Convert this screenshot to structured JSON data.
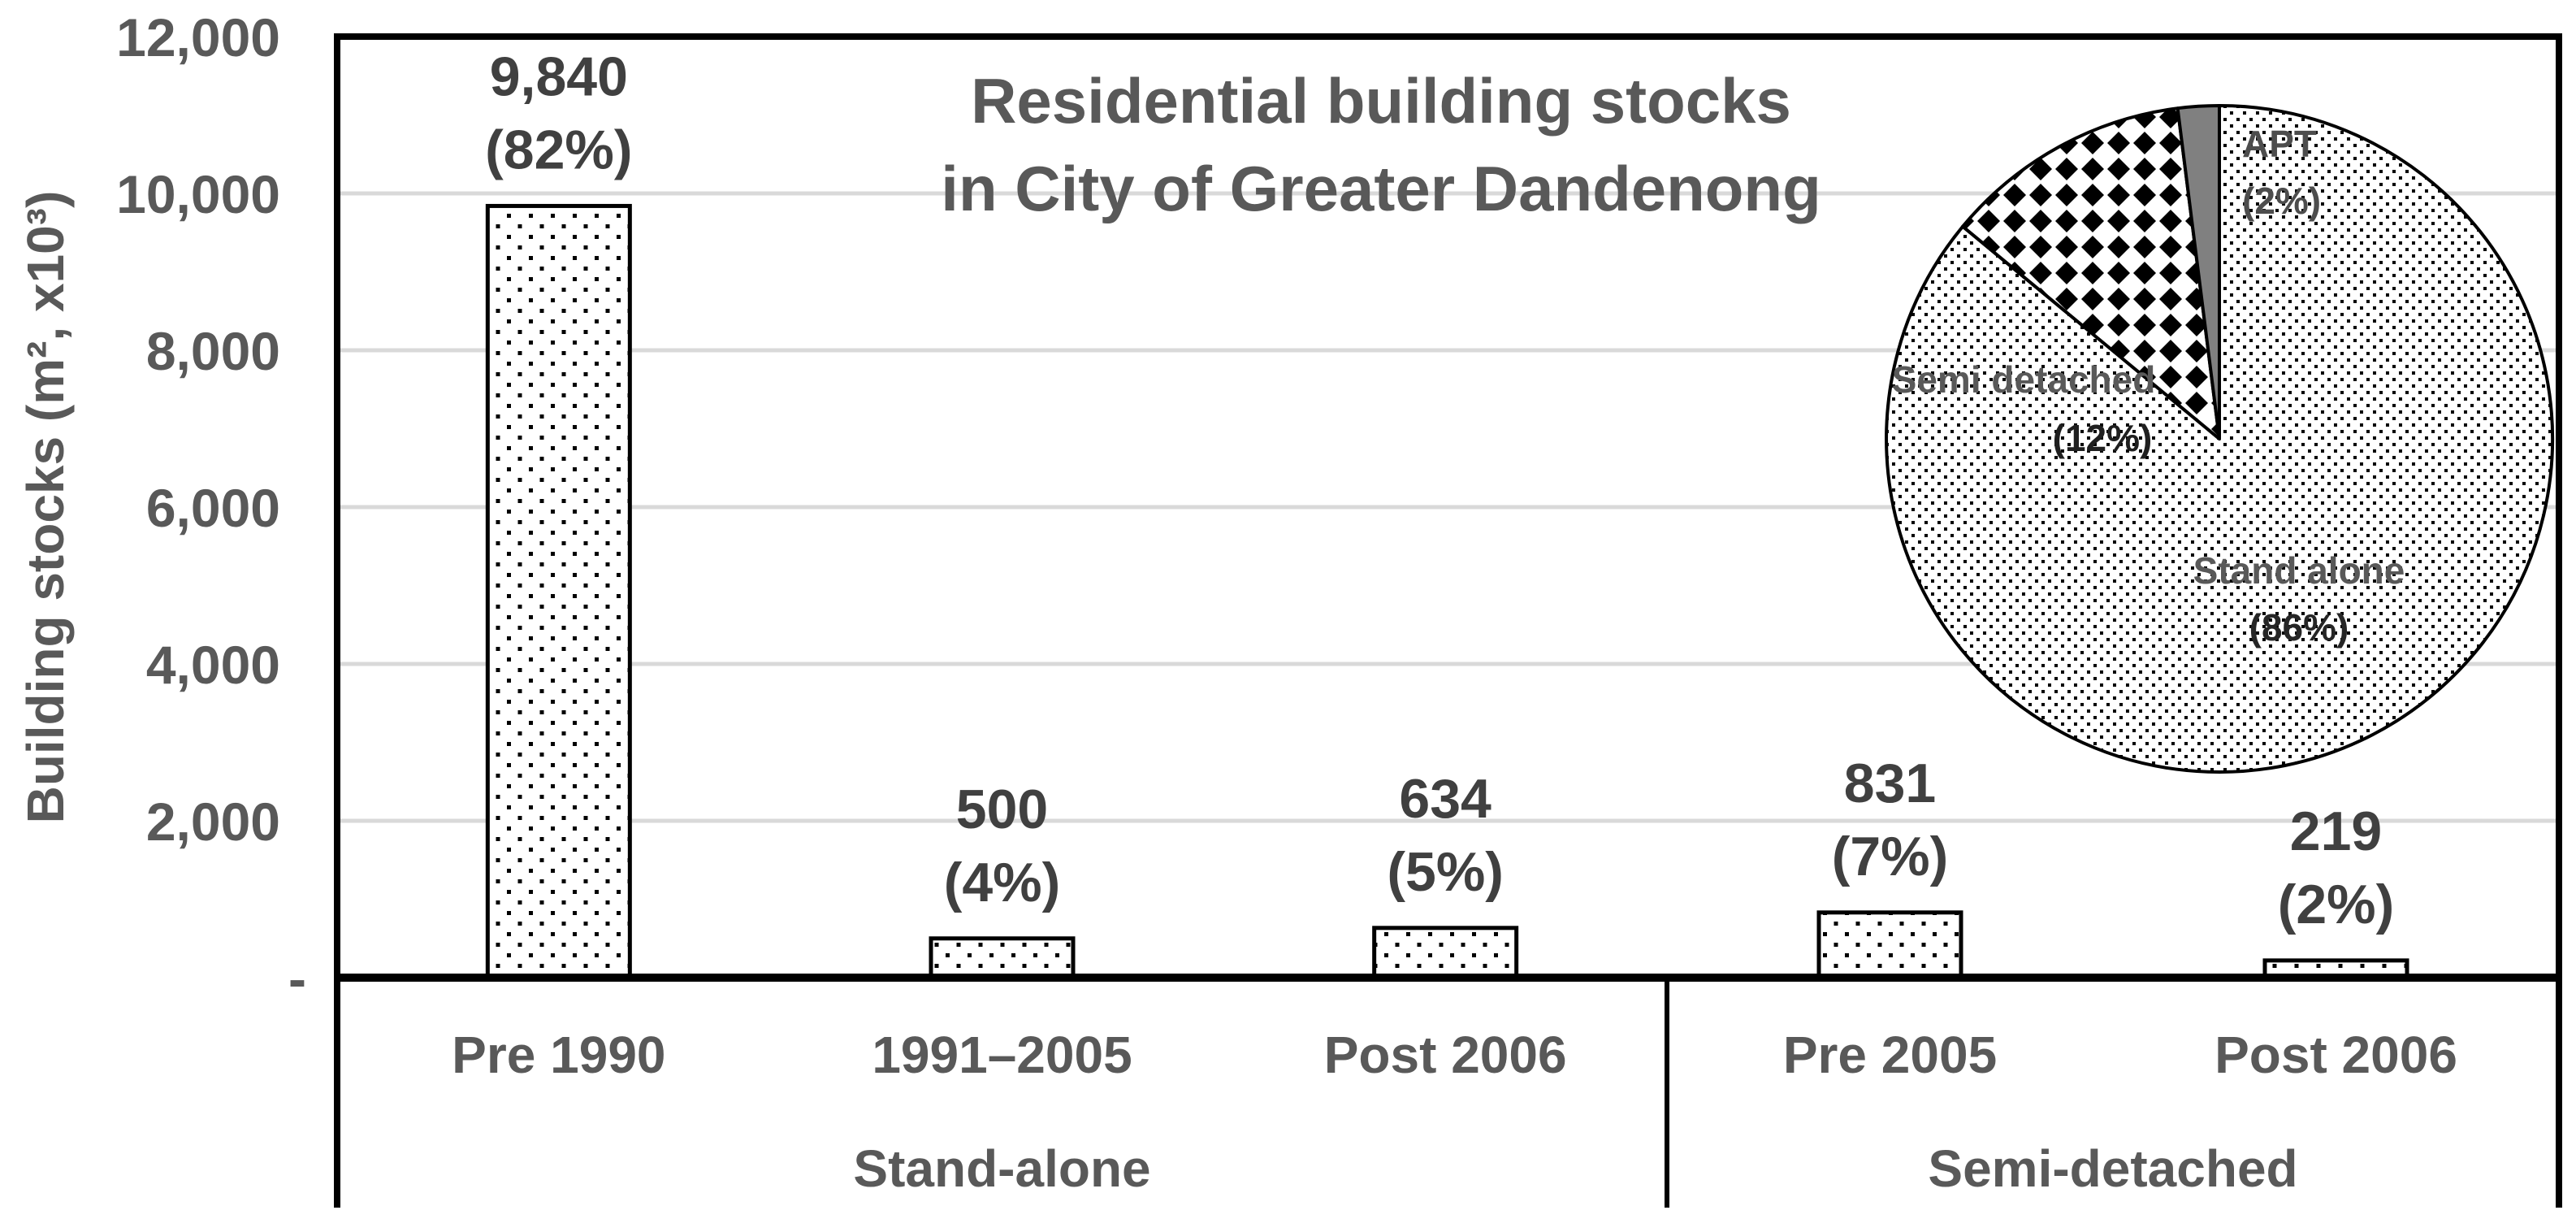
{
  "title": {
    "line1": "Residential building stocks",
    "line2": "in City of Greater Dandenong"
  },
  "y_axis": {
    "title": "Building stocks (m², x10³)",
    "ticks": [
      "12,000",
      "10,000",
      "8,000",
      "6,000",
      "4,000",
      "2,000",
      "-"
    ],
    "tick_values": [
      12000,
      10000,
      8000,
      6000,
      4000,
      2000,
      0
    ]
  },
  "chart_data": {
    "type": "bar",
    "title": "Residential building stocks in City of Greater Dandenong",
    "ylabel": "Building stocks (m², x10³)",
    "ylim": [
      0,
      12000
    ],
    "grid": true,
    "bar_fill": "dots",
    "groups": [
      {
        "label": "Stand-alone",
        "categories": [
          "Pre 1990",
          "1991–2005",
          "Post 2006"
        ],
        "values": [
          9840,
          500,
          634
        ],
        "value_labels": [
          "9,840",
          "500",
          "634"
        ],
        "pct_labels": [
          "(82%)",
          "(4%)",
          "(5%)"
        ]
      },
      {
        "label": "Semi-detached",
        "categories": [
          "Pre 2005",
          "Post 2006"
        ],
        "values": [
          831,
          219
        ],
        "value_labels": [
          "831",
          "219"
        ],
        "pct_labels": [
          "(7%)",
          "(2%)"
        ]
      }
    ],
    "pie": {
      "type": "pie",
      "start_angle_deg": 0,
      "direction": "clockwise",
      "slices": [
        {
          "label": "Stand alone",
          "pct_label": "(86%)",
          "value": 86,
          "fill": "dots",
          "label_color": "#595959",
          "pct_color": "#262626"
        },
        {
          "label": "Semi detached",
          "pct_label": "(12%)",
          "value": 12,
          "fill": "diamonds",
          "label_color": "#595959",
          "pct_color": "#1f1f1f"
        },
        {
          "label": "APT",
          "pct_label": "(2%)",
          "value": 2,
          "fill": "#808080",
          "label_color": "#4d4d4d",
          "pct_color": "#4d4d4d"
        }
      ]
    }
  },
  "colors": {
    "text": "#595959",
    "data_label": "#404040",
    "gridline": "#d9d9d9",
    "axis": "#000000",
    "pattern_dot": "#000000",
    "apt_gray": "#808080",
    "background": "#ffffff"
  }
}
